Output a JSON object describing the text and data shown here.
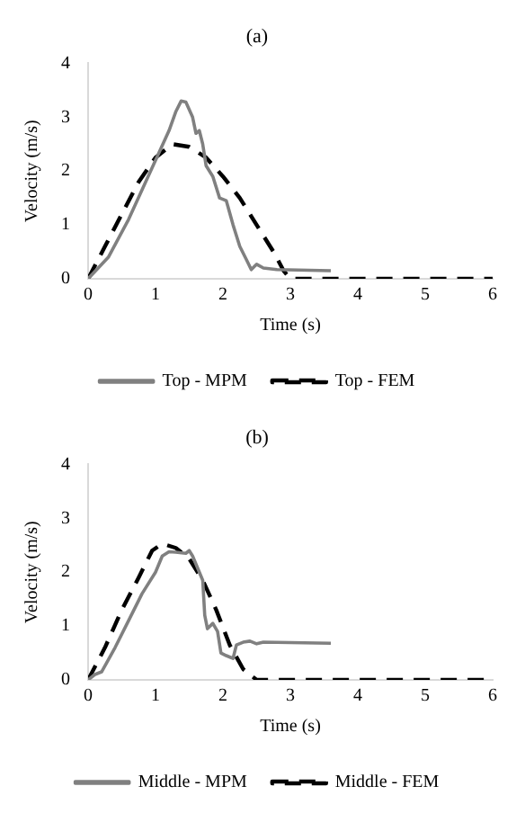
{
  "chart_data": [
    {
      "type": "line",
      "title": "(a)",
      "xlabel": "Time (s)",
      "ylabel": "Velocity (m/s)",
      "xlim": [
        0,
        6
      ],
      "xticks": [
        0,
        1,
        2,
        3,
        4,
        5,
        6
      ],
      "ylim": [
        0,
        4
      ],
      "yticks": [
        0,
        1,
        2,
        3,
        4
      ],
      "grid": false,
      "legend": "bottom",
      "marker": "none",
      "series": [
        {
          "name": "Top - MPM",
          "color": "#808080",
          "line_style": "solid",
          "x": [
            0,
            0.3,
            0.6,
            1.0,
            1.2,
            1.3,
            1.38,
            1.45,
            1.55,
            1.6,
            1.65,
            1.7,
            1.75,
            1.85,
            1.95,
            2.05,
            2.15,
            2.25,
            2.35,
            2.42,
            2.5,
            2.6,
            2.8,
            3.6
          ],
          "values": [
            0,
            0.4,
            1.1,
            2.2,
            2.75,
            3.1,
            3.3,
            3.28,
            3.0,
            2.7,
            2.75,
            2.5,
            2.1,
            1.9,
            1.5,
            1.45,
            1.0,
            0.6,
            0.35,
            0.17,
            0.27,
            0.2,
            0.17,
            0.15
          ]
        },
        {
          "name": "Top - FEM",
          "color": "#000000",
          "line_style": "dashed",
          "x": [
            0,
            0.25,
            0.5,
            0.75,
            1.0,
            1.25,
            1.5,
            1.75,
            2.0,
            2.25,
            2.5,
            2.75,
            2.9,
            3.0,
            6
          ],
          "values": [
            0,
            0.6,
            1.2,
            1.8,
            2.25,
            2.5,
            2.45,
            2.25,
            1.9,
            1.5,
            1.0,
            0.5,
            0.15,
            0,
            0
          ]
        }
      ]
    },
    {
      "type": "line",
      "title": "(b)",
      "xlabel": "Time (s)",
      "ylabel": "Velocity (m/s)",
      "xlim": [
        0,
        6
      ],
      "xticks": [
        0,
        1,
        2,
        3,
        4,
        5,
        6
      ],
      "ylim": [
        0,
        4
      ],
      "yticks": [
        0,
        1,
        2,
        3,
        4
      ],
      "grid": false,
      "legend": "bottom",
      "marker": "none",
      "series": [
        {
          "name": "Middle - MPM",
          "color": "#808080",
          "line_style": "solid",
          "x": [
            0,
            0.1,
            0.2,
            0.4,
            0.6,
            0.8,
            1.0,
            1.1,
            1.2,
            1.3,
            1.45,
            1.5,
            1.55,
            1.65,
            1.7,
            1.73,
            1.77,
            1.85,
            1.92,
            1.97,
            2.05,
            2.15,
            2.2,
            2.3,
            2.4,
            2.5,
            2.6,
            3.6
          ],
          "values": [
            0,
            0.1,
            0.15,
            0.6,
            1.1,
            1.6,
            2.0,
            2.3,
            2.38,
            2.37,
            2.35,
            2.4,
            2.3,
            2.0,
            1.85,
            1.2,
            0.95,
            1.05,
            0.9,
            0.5,
            0.45,
            0.4,
            0.65,
            0.7,
            0.72,
            0.67,
            0.7,
            0.68
          ]
        },
        {
          "name": "Middle - FEM",
          "color": "#000000",
          "line_style": "dashed",
          "x": [
            0,
            0.25,
            0.5,
            0.75,
            0.95,
            1.1,
            1.3,
            1.5,
            1.7,
            1.9,
            2.1,
            2.3,
            2.5,
            6
          ],
          "values": [
            0,
            0.6,
            1.3,
            1.9,
            2.4,
            2.53,
            2.45,
            2.25,
            1.85,
            1.3,
            0.65,
            0.2,
            0,
            0
          ]
        }
      ]
    }
  ]
}
